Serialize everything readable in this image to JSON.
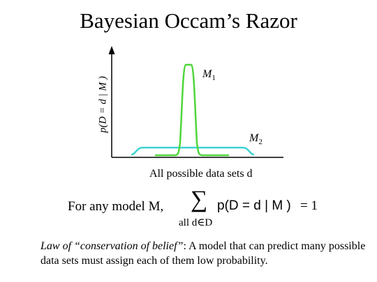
{
  "title": "Bayesian Occam’s Razor",
  "y_axis_label": "p(D = d | M )",
  "x_axis_label": "All possible data sets d",
  "model_labels": {
    "m1": "M",
    "m1_sub": "1",
    "m2": "M",
    "m2_sub": "2"
  },
  "colors": {
    "m1_curve": "#4ed63a",
    "m2_curve": "#3fd2d2",
    "axes": "#000000"
  },
  "equation": {
    "lead": "For any model M,",
    "sum_symbol": "∑",
    "sum_subscript": "all d∈D",
    "term": "p(D = d | M )",
    "rhs": "=  1"
  },
  "law": {
    "italic_part": "Law of “conservation of belief”",
    "rest": ": A model that can predict many possible data sets must assign each of them low probability."
  }
}
